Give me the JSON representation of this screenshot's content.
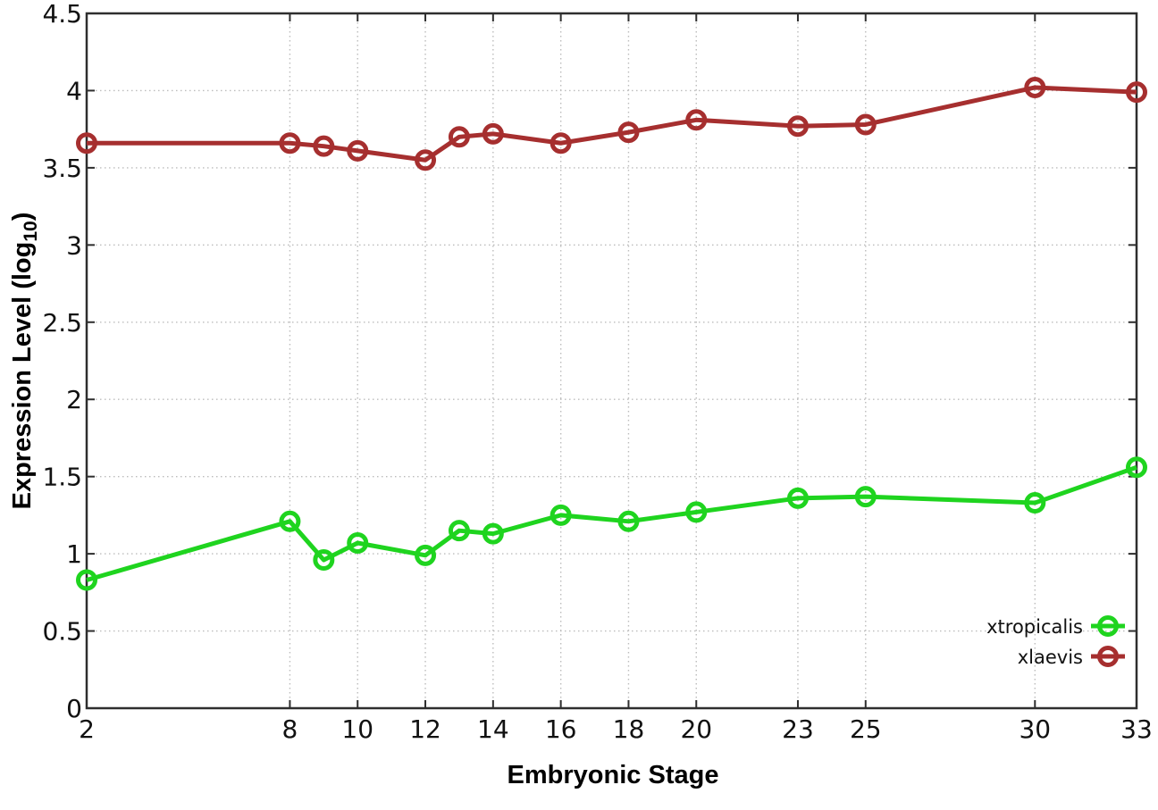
{
  "figure": {
    "background": "#ffffff",
    "border_color": "#2e2e2e",
    "grid_color": "#bcbcbc",
    "text_color": "#111111"
  },
  "chart_data": {
    "type": "line",
    "title": "",
    "xlabel": "Embryonic Stage",
    "ylabel": "Expression Level (log10)",
    "ylabel_main": "Expression Level (log",
    "ylabel_sub": "10",
    "ylabel_close": ")",
    "xlim": [
      2,
      33
    ],
    "ylim": [
      0,
      4.5
    ],
    "x_ticks": [
      2,
      8,
      10,
      12,
      14,
      16,
      18,
      20,
      23,
      25,
      30,
      33
    ],
    "y_ticks": [
      0,
      0.5,
      1,
      1.5,
      2,
      2.5,
      3,
      3.5,
      4,
      4.5
    ],
    "grid": true,
    "legend_position": "inside-bottom-right",
    "x": [
      2,
      8,
      9,
      10,
      12,
      13,
      14,
      16,
      18,
      20,
      23,
      25,
      30,
      33
    ],
    "series": [
      {
        "name": "xtropicalis",
        "color": "#1fd41f",
        "values": [
          0.83,
          1.21,
          0.96,
          1.07,
          0.99,
          1.15,
          1.13,
          1.25,
          1.21,
          1.27,
          1.36,
          1.37,
          1.33,
          1.56
        ]
      },
      {
        "name": "xlaevis",
        "color": "#a62f2f",
        "values": [
          3.66,
          3.66,
          3.64,
          3.61,
          3.55,
          3.7,
          3.72,
          3.66,
          3.73,
          3.81,
          3.77,
          3.78,
          4.02,
          3.99
        ]
      }
    ]
  }
}
